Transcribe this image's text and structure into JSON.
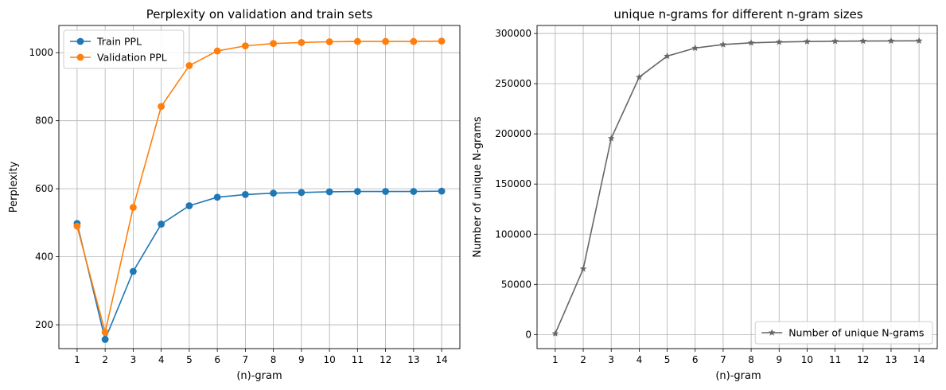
{
  "chart_data": [
    {
      "type": "line",
      "title": "Perplexity on validation and train sets",
      "xlabel": "(n)-gram",
      "ylabel": "Perplexity",
      "x": [
        1,
        2,
        3,
        4,
        5,
        6,
        7,
        8,
        9,
        10,
        11,
        12,
        13,
        14
      ],
      "xlim": [
        0.35,
        14.65
      ],
      "ylim": [
        130,
        1080
      ],
      "yticks": [
        200,
        400,
        600,
        800,
        1000
      ],
      "grid": true,
      "legend": "top-left",
      "series": [
        {
          "name": "Train PPL",
          "color": "#1f77b4",
          "marker": "circle",
          "values": [
            498,
            157,
            357,
            496,
            550,
            575,
            583,
            587,
            589,
            591,
            592,
            592,
            592,
            593
          ]
        },
        {
          "name": "Validation PPL",
          "color": "#ff7f0e",
          "marker": "circle",
          "values": [
            490,
            178,
            545,
            842,
            962,
            1005,
            1020,
            1027,
            1030,
            1032,
            1033,
            1033,
            1033,
            1034
          ]
        }
      ]
    },
    {
      "type": "line",
      "title": "unique n-grams for different n-gram sizes",
      "xlabel": "(n)-gram",
      "ylabel": "Number of unique N-grams",
      "x": [
        1,
        2,
        3,
        4,
        5,
        6,
        7,
        8,
        9,
        10,
        11,
        12,
        13,
        14
      ],
      "xlim": [
        0.35,
        14.65
      ],
      "ylim": [
        -14000,
        308000
      ],
      "yticks": [
        0,
        50000,
        100000,
        150000,
        200000,
        250000,
        300000
      ],
      "grid": true,
      "legend": "bottom-right",
      "series": [
        {
          "name": "Number of unique N-grams",
          "color": "#666666",
          "marker": "star",
          "values": [
            1000,
            65500,
            195500,
            256500,
            277500,
            285500,
            289000,
            290700,
            291500,
            292000,
            292300,
            292500,
            292600,
            292700
          ]
        }
      ]
    }
  ]
}
